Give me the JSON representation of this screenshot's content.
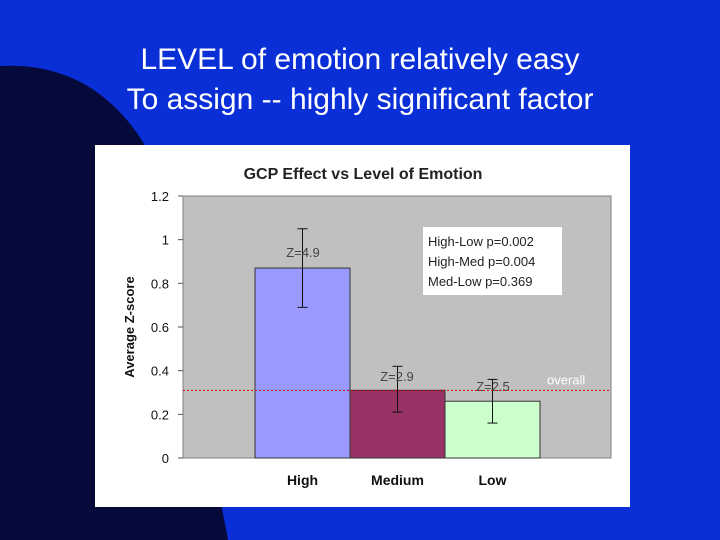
{
  "slide": {
    "title_line1": "LEVEL of emotion relatively easy",
    "title_line2": "To assign -- highly significant factor",
    "background_color": "#0a2fd6",
    "dark_accent_color": "#050a3a"
  },
  "chart_data": {
    "type": "bar",
    "title": "GCP Effect vs Level of Emotion",
    "xlabel": "",
    "ylabel": "Average Z-score",
    "categories": [
      "High",
      "Medium",
      "Low"
    ],
    "values": [
      0.87,
      0.31,
      0.26
    ],
    "error_low": [
      0.69,
      0.21,
      0.16
    ],
    "error_high": [
      1.05,
      0.42,
      0.36
    ],
    "bar_colors": [
      "#9999ff",
      "#993366",
      "#ccffcc"
    ],
    "bar_labels": [
      "Z=4.9",
      "Z=2.9",
      "Z=2.5"
    ],
    "ylim": [
      0,
      1.2
    ],
    "yticks": [
      "0",
      "0.2",
      "0.4",
      "0.6",
      "0.8",
      "1",
      "1.2"
    ],
    "yticks_values": [
      0,
      0.2,
      0.4,
      0.6,
      0.8,
      1.0,
      1.2
    ],
    "reference_line": {
      "label": "overall",
      "value": 0.31,
      "color": "#cc0000"
    },
    "annotation": [
      "High-Low p=0.002",
      "High-Med p=0.004",
      "Med-Low p=0.369"
    ],
    "plot_background": "#c0c0c0",
    "grid": false
  }
}
